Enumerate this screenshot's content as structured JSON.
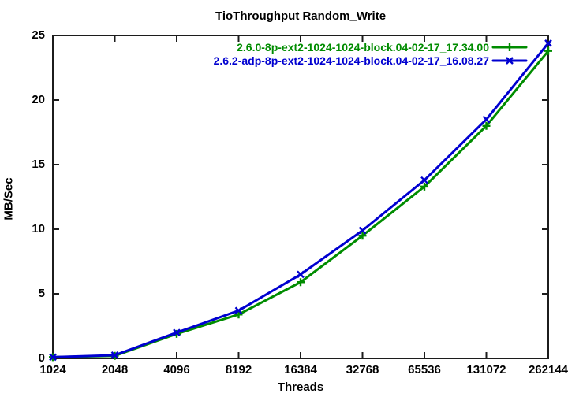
{
  "chart_data": {
    "type": "line",
    "title": "TioThroughput Random_Write",
    "xlabel": "Threads",
    "ylabel": "MB/Sec",
    "x_scale": "log2",
    "categories": [
      "1024",
      "2048",
      "4096",
      "8192",
      "16384",
      "32768",
      "65536",
      "131072",
      "262144"
    ],
    "yticks": [
      "0",
      "5",
      "10",
      "15",
      "20",
      "25"
    ],
    "ylim": [
      0,
      25
    ],
    "grid": false,
    "legend_position": "top-right-inside",
    "axis_color": "#1c1c1c",
    "series": [
      {
        "name": "2.6.0-8p-ext2-1024-1024-block.04-02-17_17.34.00",
        "color": "#008c00",
        "marker": "plus",
        "values": [
          0.1,
          0.2,
          1.9,
          3.4,
          5.9,
          9.5,
          13.3,
          18.0,
          23.8
        ]
      },
      {
        "name": "2.6.2-adp-8p-ext2-1024-1024-block.04-02-17_16.08.27",
        "color": "#0000d0",
        "marker": "cross",
        "values": [
          0.1,
          0.25,
          2.0,
          3.7,
          6.5,
          9.9,
          13.8,
          18.5,
          24.4
        ]
      }
    ]
  }
}
